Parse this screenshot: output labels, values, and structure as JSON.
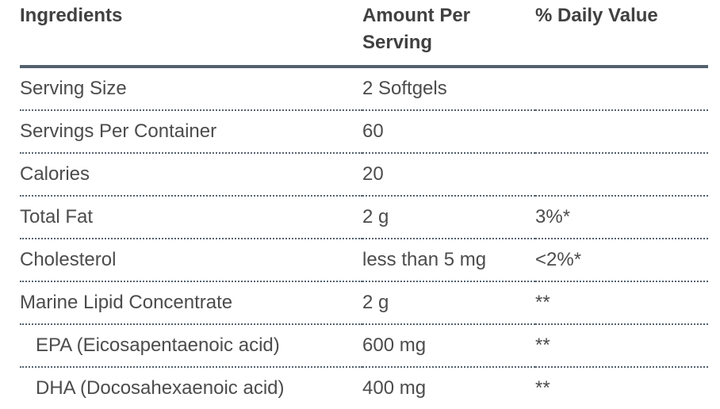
{
  "table": {
    "header": {
      "ingredients": "Ingredients",
      "amount_per_serving": "Amount Per Serving",
      "daily_value": "% Daily Value"
    },
    "rows": [
      {
        "ingredient": "Serving Size",
        "amount": "2 Softgels",
        "daily_value": ""
      },
      {
        "ingredient": "Servings Per Container",
        "amount": "60",
        "daily_value": ""
      },
      {
        "ingredient": "Calories",
        "amount": "20",
        "daily_value": ""
      },
      {
        "ingredient": "Total Fat",
        "amount": "2 g",
        "daily_value": "3%*"
      },
      {
        "ingredient": "Cholesterol",
        "amount": "less than 5 mg",
        "daily_value": "<2%*"
      },
      {
        "ingredient": "Marine Lipid Concentrate",
        "amount": "2 g",
        "daily_value": "**"
      },
      {
        "ingredient": "EPA (Eicosapentaenoic acid)",
        "amount": "600 mg",
        "daily_value": "**"
      },
      {
        "ingredient": "DHA (Docosahexaenoic acid)",
        "amount": "400 mg",
        "daily_value": "**"
      }
    ],
    "colors": {
      "header_rule": "#53616e",
      "row_divider": "#55626e",
      "header_text": "#414141",
      "body_text": "#4c4c4c",
      "background": "#ffffff"
    }
  }
}
